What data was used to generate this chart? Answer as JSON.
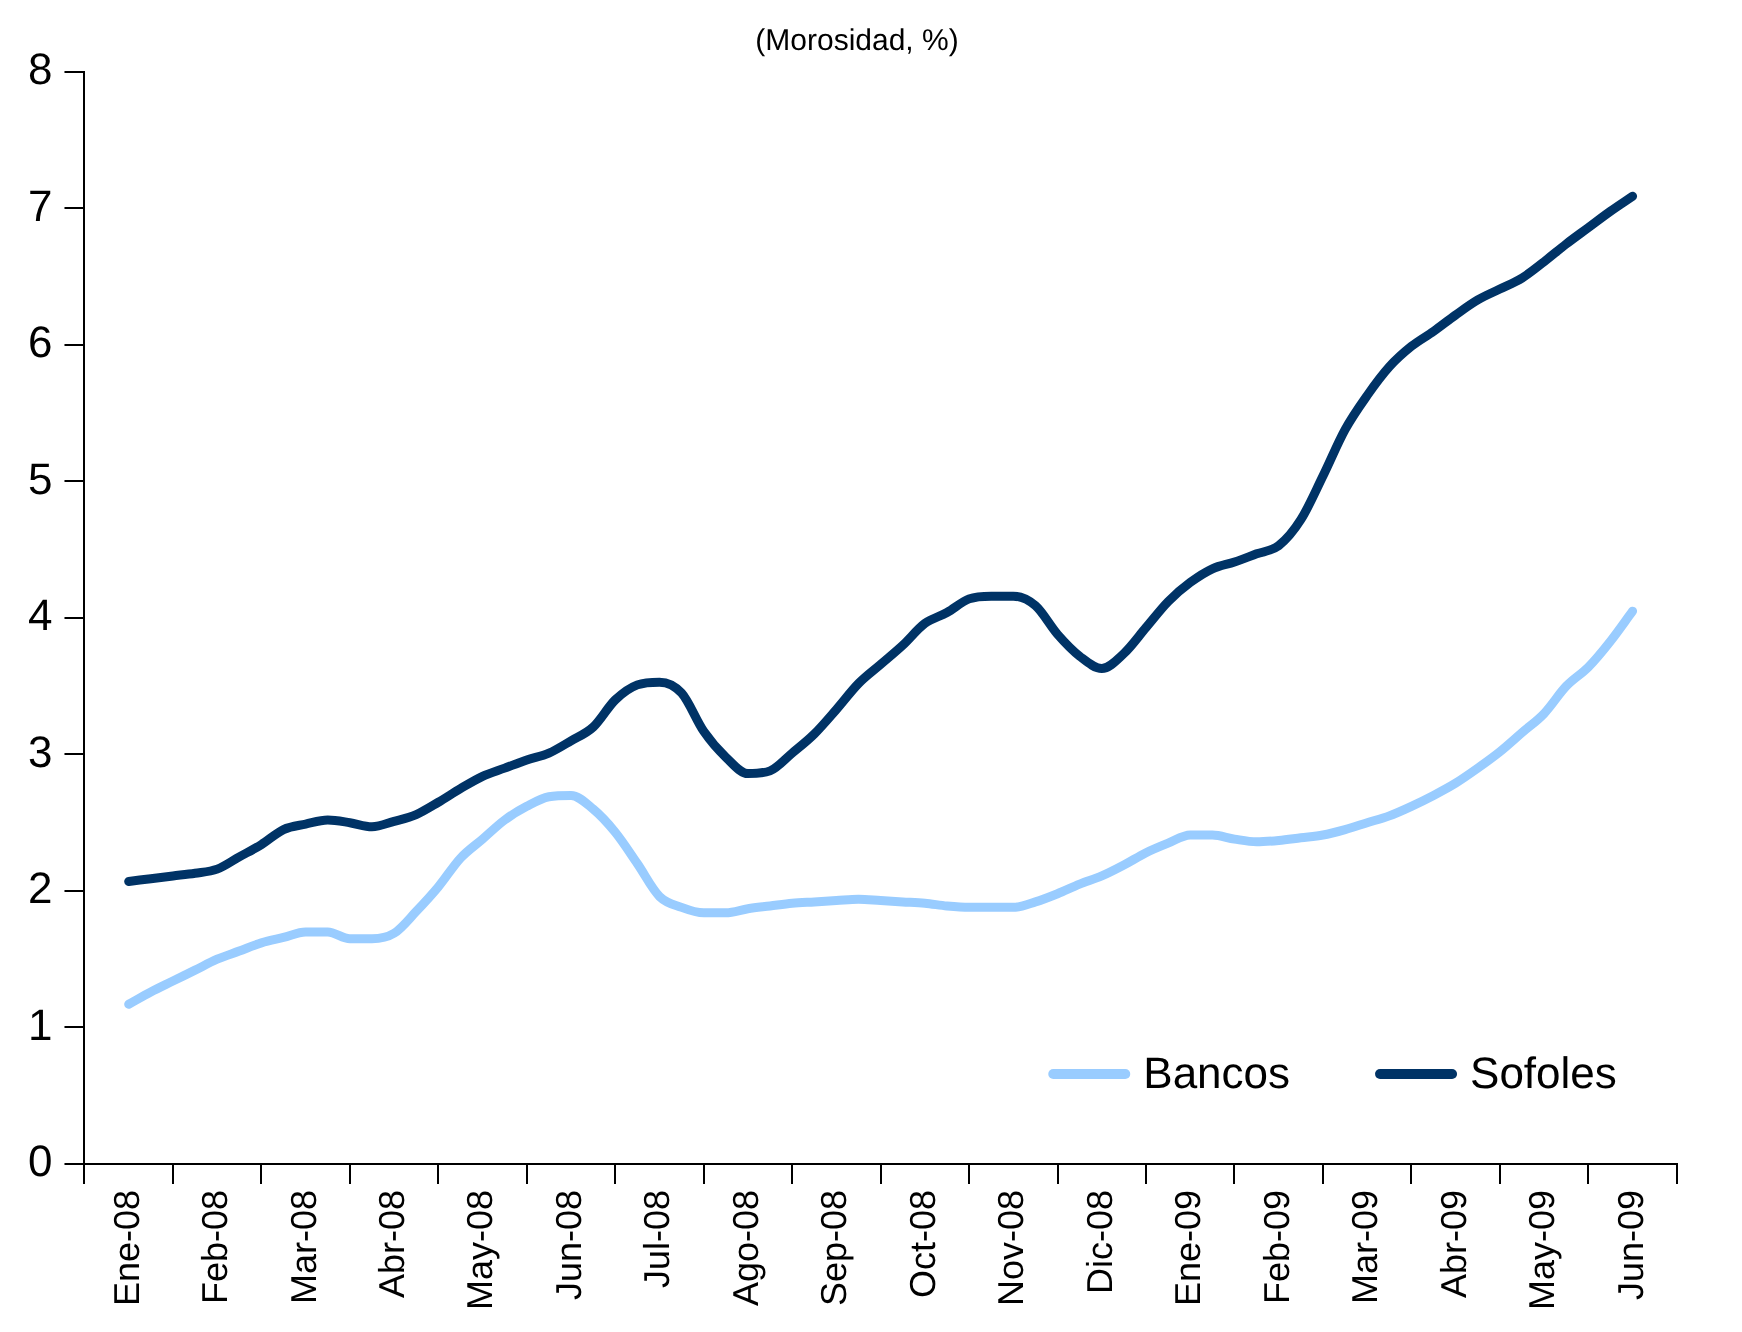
{
  "chart_data": {
    "type": "line",
    "subtitle": "(Morosidad, %)",
    "categories": [
      null,
      null,
      "Ene-08",
      null,
      null,
      null,
      "Feb-08",
      null,
      null,
      null,
      "Mar-08",
      null,
      null,
      null,
      "Abr-08",
      null,
      null,
      null,
      "May-08",
      null,
      null,
      null,
      "Jun-08",
      null,
      null,
      null,
      "Jul-08",
      null,
      null,
      null,
      "Ago-08",
      null,
      null,
      null,
      "Sep-08",
      null,
      null,
      null,
      "Oct-08",
      null,
      null,
      null,
      "Nov-08",
      null,
      null,
      null,
      "Dic-08",
      null,
      null,
      null,
      "Ene-09",
      null,
      null,
      null,
      "Feb-09",
      null,
      null,
      null,
      "Mar-09",
      null,
      null,
      null,
      "Abr-09",
      null,
      null,
      null,
      "May-09",
      null,
      null,
      null,
      "Jun-09",
      null,
      null
    ],
    "series": [
      {
        "name": "Bancos",
        "color": "#99ccff",
        "values": [
          null,
          null,
          1.17,
          1.26,
          1.34,
          1.42,
          1.5,
          1.56,
          1.62,
          1.66,
          1.7,
          1.7,
          1.65,
          1.65,
          1.69,
          1.85,
          2.03,
          2.24,
          2.38,
          2.52,
          2.62,
          2.69,
          2.7,
          2.6,
          2.43,
          2.2,
          1.96,
          1.88,
          1.84,
          1.84,
          1.87,
          1.89,
          1.91,
          1.92,
          1.93,
          1.94,
          1.93,
          1.92,
          1.91,
          1.89,
          1.88,
          1.88,
          1.88,
          1.92,
          1.98,
          2.05,
          2.11,
          2.19,
          2.28,
          2.35,
          2.41,
          2.41,
          2.38,
          2.36,
          2.37,
          2.39,
          2.41,
          2.45,
          2.5,
          2.55,
          2.62,
          2.7,
          2.79,
          2.9,
          3.02,
          3.16,
          3.3,
          3.5,
          3.64,
          3.83,
          4.05,
          null,
          null
        ]
      },
      {
        "name": "Sofoles",
        "color": "#003366",
        "values": [
          null,
          null,
          2.07,
          2.09,
          2.11,
          2.13,
          2.16,
          2.25,
          2.34,
          2.45,
          2.49,
          2.52,
          2.5,
          2.47,
          2.51,
          2.56,
          2.65,
          2.75,
          2.84,
          2.9,
          2.96,
          3.01,
          3.1,
          3.2,
          3.4,
          3.51,
          3.53,
          3.45,
          3.17,
          2.98,
          2.86,
          2.88,
          3.01,
          3.15,
          3.33,
          3.52,
          3.66,
          3.8,
          3.96,
          4.04,
          4.14,
          4.16,
          4.16,
          4.09,
          3.88,
          3.72,
          3.63,
          3.74,
          3.93,
          4.12,
          4.26,
          4.36,
          4.41,
          4.47,
          4.53,
          4.72,
          5.04,
          5.38,
          5.63,
          5.84,
          5.99,
          6.1,
          6.22,
          6.33,
          6.41,
          6.49,
          6.61,
          6.74,
          6.86,
          6.98,
          7.09,
          null,
          null
        ]
      }
    ],
    "ylim": [
      0,
      8
    ],
    "yticks": [
      0,
      1,
      2,
      3,
      4,
      5,
      6,
      7,
      8
    ],
    "grid": false,
    "legend": "bottom right",
    "marker": "none",
    "line_style": "solid"
  }
}
